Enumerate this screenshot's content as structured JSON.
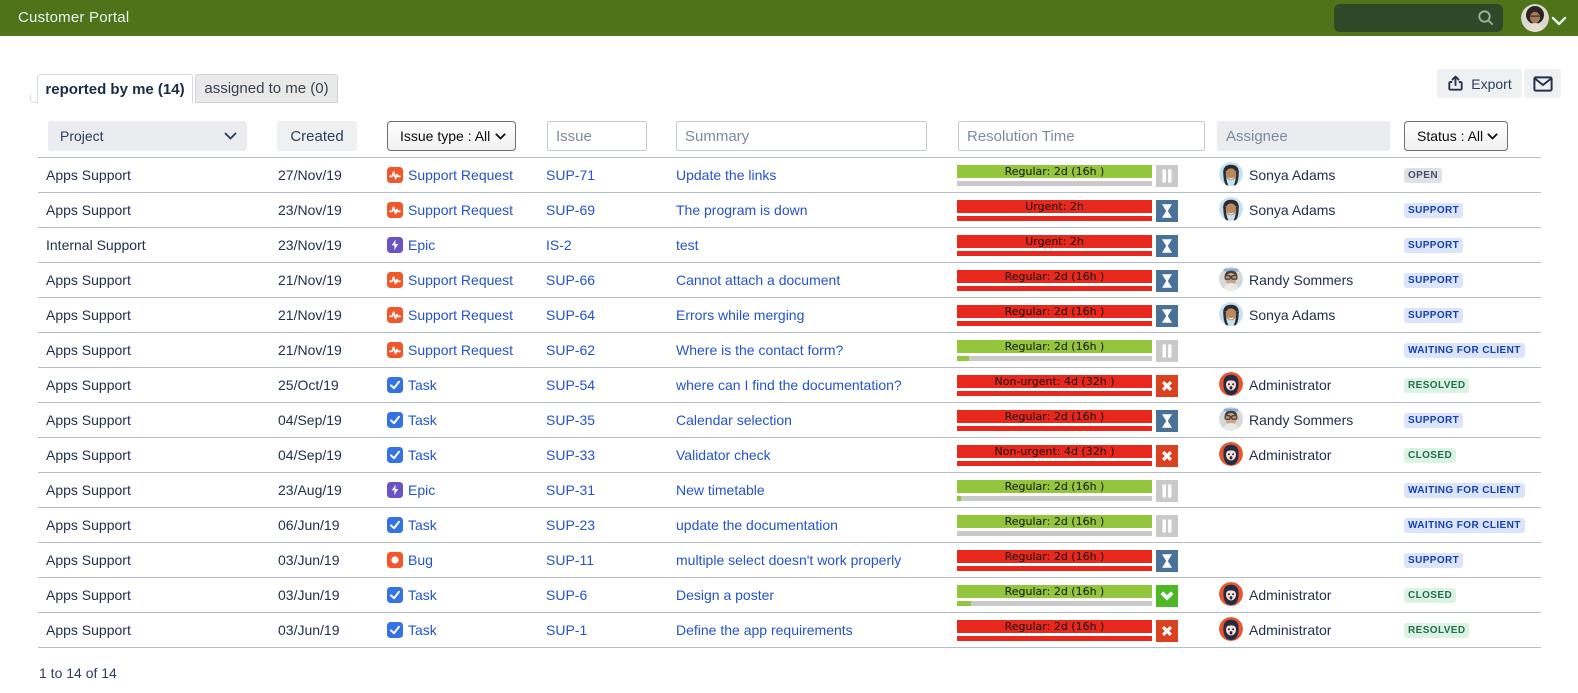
{
  "topbar": {
    "title": "Customer Portal",
    "search_placeholder": ""
  },
  "tabs": {
    "reported": {
      "label": "reported by me (14)"
    },
    "assigned": {
      "label": "assigned to me (0)"
    }
  },
  "toolbar": {
    "export_label": "Export"
  },
  "filters": {
    "project": {
      "label": "Project"
    },
    "created": {
      "label": "Created"
    },
    "issue_type": {
      "label": "Issue type : All"
    },
    "issue": {
      "placeholder": "Issue"
    },
    "summary": {
      "placeholder": "Summary"
    },
    "resolution_time": {
      "placeholder": "Resolution Time"
    },
    "assignee": {
      "placeholder": "Assignee"
    },
    "status": {
      "label": "Status : All"
    }
  },
  "colors": {
    "topbar_green": "#4f7318",
    "search_field_green": "#2f4827",
    "link_blue": "#2353cd",
    "sla_green": "#94c63d",
    "sla_red": "#e8281d",
    "sla_track_gray": "#c9c9c9",
    "icon_pause_gray": "#c9c9c9",
    "icon_hourglass_blue": "#4a7197",
    "icon_cross_red": "#d9411f",
    "icon_check_green": "#4cb826",
    "type_task_blue": "#3572e4",
    "type_epic_purple": "#6b53c4",
    "type_orange": "#f0582c",
    "lozenge_gray_bg": "#dfe1e5",
    "lozenge_blue_bg": "#dbe4fb",
    "lozenge_green_bg": "#dcf3e4"
  },
  "rows": [
    {
      "project": "Apps Support",
      "created": "27/Nov/19",
      "type": {
        "name": "Support Request",
        "icon": "support-request-icon"
      },
      "key": "SUP-71",
      "summary": "Update the links",
      "sla": {
        "label": "Regular: 2d (16h )",
        "bar": "green",
        "progress_pct": 0,
        "progress_fill": "green",
        "icon": "pause"
      },
      "assignee": {
        "name": "Sonya Adams",
        "avatar": "sonya"
      },
      "status": {
        "label": "OPEN",
        "variant": "gray"
      }
    },
    {
      "project": "Apps Support",
      "created": "23/Nov/19",
      "type": {
        "name": "Support Request",
        "icon": "support-request-icon"
      },
      "key": "SUP-69",
      "summary": "The program is down",
      "sla": {
        "label": "Urgent: 2h",
        "bar": "red",
        "progress_pct": 100,
        "progress_fill": "red",
        "icon": "hourglass"
      },
      "assignee": {
        "name": "Sonya Adams",
        "avatar": "sonya"
      },
      "status": {
        "label": "SUPPORT",
        "variant": "blue"
      }
    },
    {
      "project": "Internal Support",
      "created": "23/Nov/19",
      "type": {
        "name": "Epic",
        "icon": "epic-icon"
      },
      "key": "IS-2",
      "summary": "test",
      "sla": {
        "label": "Urgent: 2h",
        "bar": "red",
        "progress_pct": 100,
        "progress_fill": "red",
        "icon": "hourglass"
      },
      "assignee": null,
      "status": {
        "label": "SUPPORT",
        "variant": "blue"
      }
    },
    {
      "project": "Apps Support",
      "created": "21/Nov/19",
      "type": {
        "name": "Support Request",
        "icon": "support-request-icon"
      },
      "key": "SUP-66",
      "summary": "Cannot attach a document",
      "sla": {
        "label": "Regular: 2d (16h )",
        "bar": "red",
        "progress_pct": 100,
        "progress_fill": "red",
        "icon": "hourglass"
      },
      "assignee": {
        "name": "Randy Sommers",
        "avatar": "randy"
      },
      "status": {
        "label": "SUPPORT",
        "variant": "blue"
      }
    },
    {
      "project": "Apps Support",
      "created": "21/Nov/19",
      "type": {
        "name": "Support Request",
        "icon": "support-request-icon"
      },
      "key": "SUP-64",
      "summary": "Errors while merging",
      "sla": {
        "label": "Regular: 2d (16h )",
        "bar": "red",
        "progress_pct": 100,
        "progress_fill": "red",
        "icon": "hourglass"
      },
      "assignee": {
        "name": "Sonya Adams",
        "avatar": "sonya"
      },
      "status": {
        "label": "SUPPORT",
        "variant": "blue"
      }
    },
    {
      "project": "Apps Support",
      "created": "21/Nov/19",
      "type": {
        "name": "Support Request",
        "icon": "support-request-icon"
      },
      "key": "SUP-62",
      "summary": "Where is the contact form?",
      "sla": {
        "label": "Regular: 2d (16h )",
        "bar": "green",
        "progress_pct": 6,
        "progress_fill": "green",
        "icon": "pause"
      },
      "assignee": null,
      "status": {
        "label": "WAITING FOR CLIENT",
        "variant": "blue"
      }
    },
    {
      "project": "Apps Support",
      "created": "25/Oct/19",
      "type": {
        "name": "Task",
        "icon": "task-icon"
      },
      "key": "SUP-54",
      "summary": "where can I find the documentation?",
      "sla": {
        "label": "Non-urgent: 4d (32h )",
        "bar": "red",
        "progress_pct": 100,
        "progress_fill": "red",
        "icon": "cross"
      },
      "assignee": {
        "name": "Administrator",
        "avatar": "admin"
      },
      "status": {
        "label": "RESOLVED",
        "variant": "green"
      }
    },
    {
      "project": "Apps Support",
      "created": "04/Sep/19",
      "type": {
        "name": "Task",
        "icon": "task-icon"
      },
      "key": "SUP-35",
      "summary": "Calendar selection",
      "sla": {
        "label": "Regular: 2d (16h )",
        "bar": "red",
        "progress_pct": 100,
        "progress_fill": "red",
        "icon": "hourglass"
      },
      "assignee": {
        "name": "Randy Sommers",
        "avatar": "randy"
      },
      "status": {
        "label": "SUPPORT",
        "variant": "blue"
      }
    },
    {
      "project": "Apps Support",
      "created": "04/Sep/19",
      "type": {
        "name": "Task",
        "icon": "task-icon"
      },
      "key": "SUP-33",
      "summary": "Validator check",
      "sla": {
        "label": "Non-urgent: 4d (32h )",
        "bar": "red",
        "progress_pct": 100,
        "progress_fill": "red",
        "icon": "cross"
      },
      "assignee": {
        "name": "Administrator",
        "avatar": "admin"
      },
      "status": {
        "label": "CLOSED",
        "variant": "green"
      }
    },
    {
      "project": "Apps Support",
      "created": "23/Aug/19",
      "type": {
        "name": "Epic",
        "icon": "epic-icon"
      },
      "key": "SUP-31",
      "summary": "New timetable",
      "sla": {
        "label": "Regular: 2d (16h )",
        "bar": "green",
        "progress_pct": 2,
        "progress_fill": "green",
        "icon": "pause"
      },
      "assignee": null,
      "status": {
        "label": "WAITING FOR CLIENT",
        "variant": "blue"
      }
    },
    {
      "project": "Apps Support",
      "created": "06/Jun/19",
      "type": {
        "name": "Task",
        "icon": "task-icon"
      },
      "key": "SUP-23",
      "summary": "update the documentation",
      "sla": {
        "label": "Regular: 2d (16h )",
        "bar": "green",
        "progress_pct": 0,
        "progress_fill": "green",
        "icon": "pause"
      },
      "assignee": null,
      "status": {
        "label": "WAITING FOR CLIENT",
        "variant": "blue"
      }
    },
    {
      "project": "Apps Support",
      "created": "03/Jun/19",
      "type": {
        "name": "Bug",
        "icon": "bug-icon"
      },
      "key": "SUP-11",
      "summary": "multiple select doesn't work properly",
      "sla": {
        "label": "Regular: 2d (16h )",
        "bar": "red",
        "progress_pct": 100,
        "progress_fill": "red",
        "icon": "hourglass"
      },
      "assignee": null,
      "status": {
        "label": "SUPPORT",
        "variant": "blue"
      }
    },
    {
      "project": "Apps Support",
      "created": "03/Jun/19",
      "type": {
        "name": "Task",
        "icon": "task-icon"
      },
      "key": "SUP-6",
      "summary": "Design a poster",
      "sla": {
        "label": "Regular: 2d (16h )",
        "bar": "green",
        "progress_pct": 7,
        "progress_fill": "green",
        "icon": "check"
      },
      "assignee": {
        "name": "Administrator",
        "avatar": "admin"
      },
      "status": {
        "label": "CLOSED",
        "variant": "green"
      }
    },
    {
      "project": "Apps Support",
      "created": "03/Jun/19",
      "type": {
        "name": "Task",
        "icon": "task-icon"
      },
      "key": "SUP-1",
      "summary": "Define the app requirements",
      "sla": {
        "label": "Regular: 2d (16h )",
        "bar": "red",
        "progress_pct": 100,
        "progress_fill": "red",
        "icon": "cross"
      },
      "assignee": {
        "name": "Administrator",
        "avatar": "admin"
      },
      "status": {
        "label": "RESOLVED",
        "variant": "green"
      }
    }
  ],
  "footer": {
    "range_text": "1 to 14 of 14"
  }
}
